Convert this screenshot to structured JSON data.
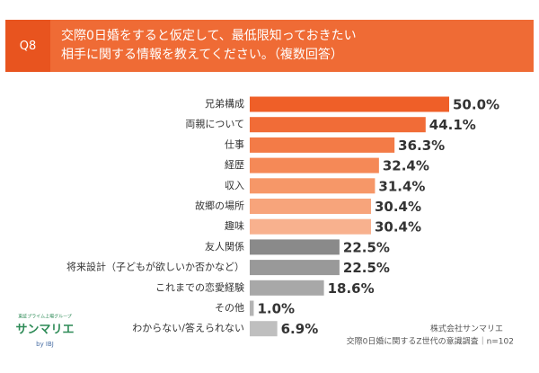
{
  "chart_data": {
    "type": "bar",
    "orientation": "horizontal",
    "question": "Q8",
    "title_lines": [
      "交際0日婚をすると仮定して、最低限知っておきたい",
      "相手に関する情報を教えてください。（複数回答）"
    ],
    "categories": [
      "兄弟構成",
      "両親について",
      "仕事",
      "経歴",
      "収入",
      "故郷の場所",
      "趣味",
      "友人関係",
      "将来設計（子どもが欲しいか否かなど）",
      "これまでの恋愛経験",
      "その他",
      "わからない/答えられない"
    ],
    "values": [
      50.0,
      44.1,
      36.3,
      32.4,
      31.4,
      30.4,
      30.4,
      22.5,
      22.5,
      18.6,
      1.0,
      6.9
    ],
    "value_labels": [
      "50.0%",
      "44.1%",
      "36.3%",
      "32.4%",
      "31.4%",
      "30.4%",
      "30.4%",
      "22.5%",
      "22.5%",
      "18.6%",
      "1.0%",
      "6.9%"
    ],
    "colors": [
      "#ef5f28",
      "#f16c37",
      "#f37b47",
      "#f58957",
      "#f69768",
      "#f7a47b",
      "#f8b18e",
      "#8a8a8a",
      "#999999",
      "#a8a8a8",
      "#b4b4b4",
      "#bfbfbf"
    ],
    "logo": {
      "tagline": "東証プライム上場グループ",
      "name": "サンマリエ",
      "by": "by IBJ"
    },
    "source": [
      "株式会社サンマリエ",
      "交際0日婚に関するZ世代の意識調査｜n=102"
    ]
  }
}
